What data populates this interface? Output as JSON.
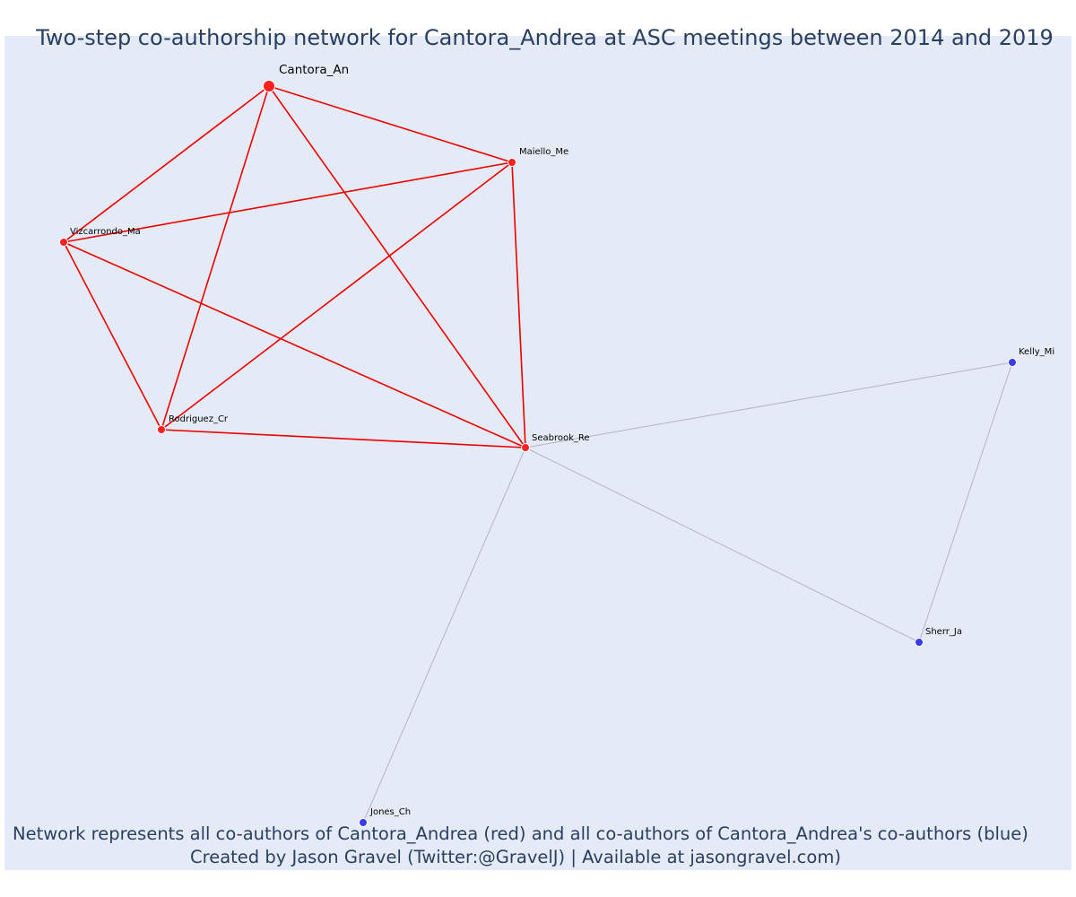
{
  "title": "Two-step co-authorship network for Cantora_Andrea at ASC meetings between 2014 and 2019",
  "caption": {
    "line1": "Network represents all co-authors of Cantora_Andrea (red) and all co-authors of Cantora_Andrea's co-authors (blue)",
    "line2": "Created by Jason Gravel (Twitter:@GravelJ) | Available at jasongravel.com)"
  },
  "colors": {
    "background": "#e5ebf6",
    "direct_coauthor": "#ff2020",
    "second_step_coauthor": "#3a3af0",
    "direct_edge": "#ee0000",
    "second_step_edge": "#b3b3c8",
    "text": "#2a3f5f"
  },
  "nodes": [
    {
      "id": "Cantora_An",
      "label": "Cantora_An",
      "group": "focal"
    },
    {
      "id": "Maiello_Me",
      "label": "Maiello_Me",
      "group": "direct"
    },
    {
      "id": "Vizcarrondo_Ma",
      "label": "Vizcarrondo_Ma",
      "group": "direct"
    },
    {
      "id": "Rodriguez_Cr",
      "label": "Rodriguez_Cr",
      "group": "direct"
    },
    {
      "id": "Seabrook_Re",
      "label": "Seabrook_Re",
      "group": "direct"
    },
    {
      "id": "Kelly_Mi",
      "label": "Kelly_Mi",
      "group": "second_step"
    },
    {
      "id": "Sherr_Ja",
      "label": "Sherr_Ja",
      "group": "second_step"
    },
    {
      "id": "Jones_Ch",
      "label": "Jones_Ch",
      "group": "second_step"
    }
  ],
  "edges": [
    {
      "source": "Cantora_An",
      "target": "Maiello_Me",
      "type": "direct"
    },
    {
      "source": "Cantora_An",
      "target": "Vizcarrondo_Ma",
      "type": "direct"
    },
    {
      "source": "Cantora_An",
      "target": "Rodriguez_Cr",
      "type": "direct"
    },
    {
      "source": "Cantora_An",
      "target": "Seabrook_Re",
      "type": "direct"
    },
    {
      "source": "Maiello_Me",
      "target": "Vizcarrondo_Ma",
      "type": "direct"
    },
    {
      "source": "Maiello_Me",
      "target": "Rodriguez_Cr",
      "type": "direct"
    },
    {
      "source": "Maiello_Me",
      "target": "Seabrook_Re",
      "type": "direct"
    },
    {
      "source": "Vizcarrondo_Ma",
      "target": "Rodriguez_Cr",
      "type": "direct"
    },
    {
      "source": "Vizcarrondo_Ma",
      "target": "Seabrook_Re",
      "type": "direct"
    },
    {
      "source": "Rodriguez_Cr",
      "target": "Seabrook_Re",
      "type": "direct"
    },
    {
      "source": "Seabrook_Re",
      "target": "Kelly_Mi",
      "type": "second_step"
    },
    {
      "source": "Seabrook_Re",
      "target": "Sherr_Ja",
      "type": "second_step"
    },
    {
      "source": "Seabrook_Re",
      "target": "Jones_Ch",
      "type": "second_step"
    },
    {
      "source": "Kelly_Mi",
      "target": "Sherr_Ja",
      "type": "second_step"
    }
  ]
}
